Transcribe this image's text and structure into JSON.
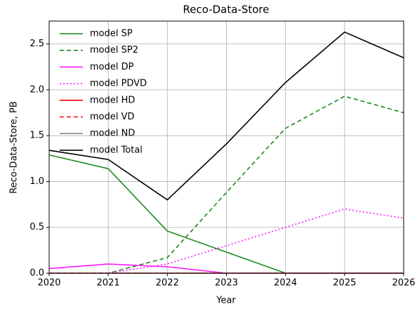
{
  "chart_data": {
    "type": "line",
    "title": "Reco-Data-Store",
    "x_label": "Year",
    "y_label": "Reco-Data-Store, PB",
    "x": [
      2020,
      2021,
      2022,
      2023,
      2024,
      2025,
      2026
    ],
    "series": [
      {
        "name": "model SP",
        "color": "#1a8a1a",
        "dash": "solid",
        "values": [
          1.29,
          1.14,
          0.46,
          0.23,
          0,
          0,
          0
        ]
      },
      {
        "name": "model SP2",
        "color": "#1a8a1a",
        "dash": "dashed",
        "values": [
          0,
          0,
          0.17,
          0.88,
          1.58,
          1.93,
          1.75
        ]
      },
      {
        "name": "model DP",
        "color": "#ff1aff",
        "dash": "solid",
        "values": [
          0.05,
          0.1,
          0.07,
          0,
          0,
          0,
          0
        ]
      },
      {
        "name": "model PDVD",
        "color": "#ff1aff",
        "dash": "dotted",
        "values": [
          0,
          0,
          0.1,
          0.3,
          0.5,
          0.7,
          0.6
        ]
      },
      {
        "name": "model HD",
        "color": "#ff0000",
        "dash": "solid",
        "values": [
          0,
          0,
          0,
          0,
          0,
          0,
          0
        ]
      },
      {
        "name": "model VD",
        "color": "#ff0000",
        "dash": "dashed",
        "values": [
          0,
          0,
          0,
          0,
          0,
          0,
          0
        ]
      },
      {
        "name": "model ND",
        "color": "#888888",
        "dash": "solid",
        "values": [
          0,
          0,
          0,
          0,
          0,
          0,
          0
        ]
      },
      {
        "name": "model Total",
        "color": "#000000",
        "dash": "solid",
        "values": [
          1.34,
          1.24,
          0.8,
          1.41,
          2.08,
          2.63,
          2.35
        ]
      }
    ],
    "xlim": [
      2020,
      2026
    ],
    "xticks": [
      2020,
      2021,
      2022,
      2023,
      2024,
      2025,
      2026
    ],
    "ylim": [
      0,
      2.75
    ],
    "yticks": [
      {
        "value": 0,
        "label": "0.0"
      },
      {
        "value": 0.5,
        "label": "0.5"
      },
      {
        "value": 1,
        "label": "1.0"
      },
      {
        "value": 1.5,
        "label": "1.5"
      },
      {
        "value": 2,
        "label": "2.0"
      },
      {
        "value": 2.5,
        "label": "2.5"
      }
    ],
    "grid": true,
    "legend": "upper left"
  }
}
